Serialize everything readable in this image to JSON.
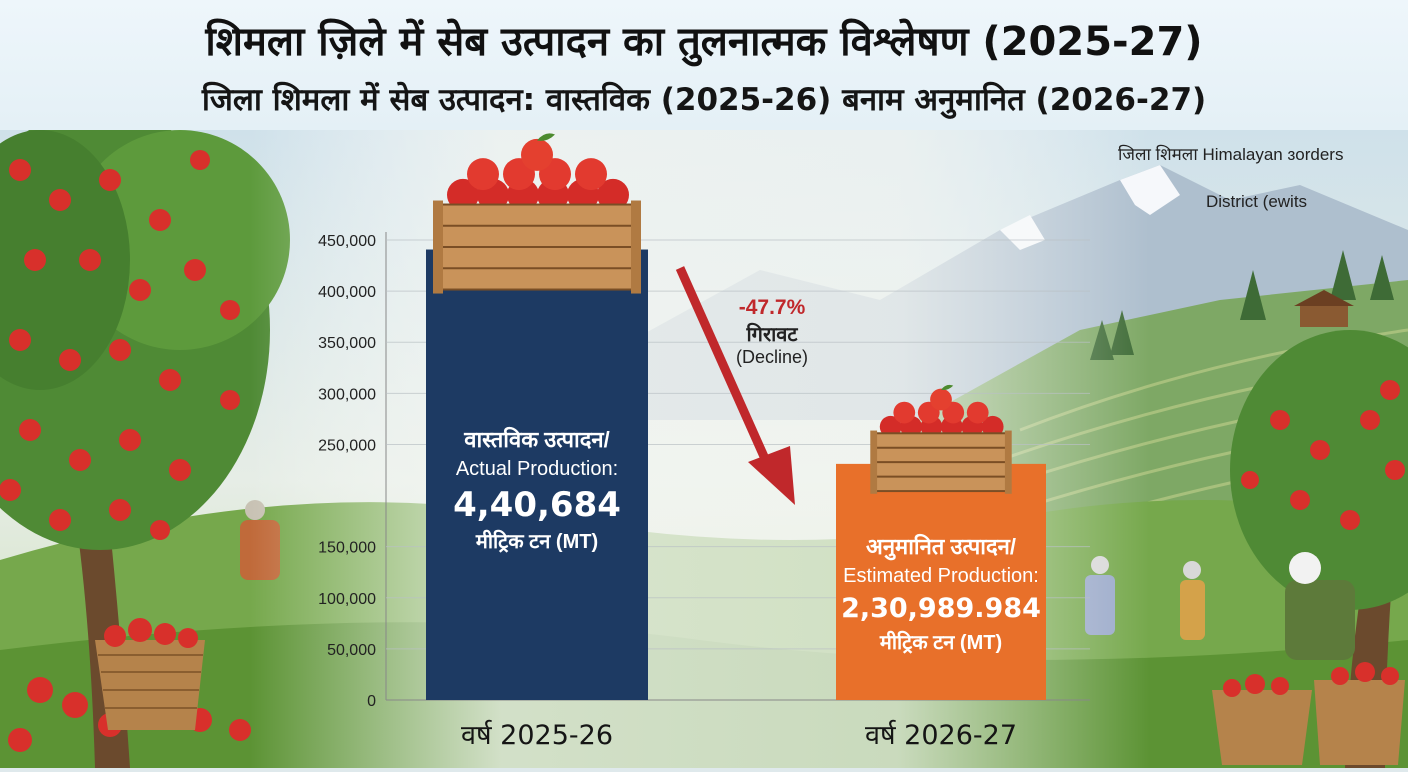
{
  "header": {
    "title": "शिमला ज़िले में सेब उत्पादन का तुलनात्मक विश्लेषण (2025-27)",
    "subtitle": "जिला शिमला में सेब उत्पादन: वास्तविक (2025-26) बनाम अनुमानित (2026-27)"
  },
  "notes": {
    "top_right_1": "जिला शिमला Himalayan ɜorders",
    "top_right_2": "District (ewits"
  },
  "colors": {
    "actual_bar": "#1d3a63",
    "estimated_bar": "#e8702a",
    "decline": "#c0282b"
  },
  "icons": [
    "apple-crate-icon",
    "decline-arrow-icon"
  ],
  "chart_data": {
    "type": "bar",
    "categories": [
      "वर्ष 2025-26",
      "वर्ष 2026-27"
    ],
    "values": [
      440684,
      230989.984
    ],
    "ylim": [
      0,
      450000
    ],
    "yticks": [
      "0",
      "50,000",
      "100,000",
      "150,000",
      "250,000",
      "300,000",
      "350,000",
      "400,000",
      "450,000"
    ],
    "ytick_values": [
      0,
      50000,
      100000,
      150000,
      250000,
      300000,
      350000,
      400000,
      450000
    ],
    "grid": true,
    "bar_labels": [
      {
        "hindi": "वास्तविक उत्पादन/",
        "english": "Actual Production:",
        "value": "4,40,684",
        "unit": "मीट्रिक टन (MT)"
      },
      {
        "hindi": "अनुमानित उत्पादन/",
        "english": "Estimated Production:",
        "value": "2,30,989.984",
        "unit": "मीट्रिक टन (MT)"
      }
    ],
    "annotation": {
      "percent": "-47.7%",
      "hindi": "गिरावट",
      "english": "(Decline)"
    }
  }
}
